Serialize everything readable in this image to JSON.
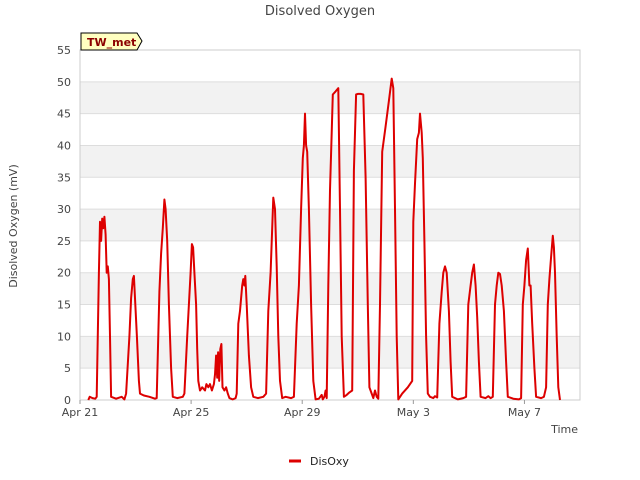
{
  "chart_data": {
    "type": "line",
    "title": "Disolved Oxygen",
    "xlabel": "Time",
    "ylabel": "Disolved Oxygen (mV)",
    "ylim": [
      0,
      55
    ],
    "xlim": [
      0,
      18
    ],
    "yticks": [
      0,
      5,
      10,
      15,
      20,
      25,
      30,
      35,
      40,
      45,
      50,
      55
    ],
    "xticks": [
      {
        "label": "Apr 21",
        "value": 0
      },
      {
        "label": "Apr 25",
        "value": 4
      },
      {
        "label": "Apr 29",
        "value": 8
      },
      {
        "label": "May 3",
        "value": 12
      },
      {
        "label": "May 7",
        "value": 16
      }
    ],
    "x_unit": "days since Apr 21",
    "grid": true,
    "legend_position": "bottom-center",
    "annotation": "TW_met",
    "colors": {
      "series": "#dd0000",
      "band": "#f2f2f2",
      "grid": "#dddddd"
    },
    "series": [
      {
        "name": "DisOxy",
        "points": [
          [
            0.3,
            0
          ],
          [
            0.35,
            0.5
          ],
          [
            0.45,
            0.3
          ],
          [
            0.55,
            0.2
          ],
          [
            0.6,
            0.5
          ],
          [
            0.68,
            20
          ],
          [
            0.72,
            28
          ],
          [
            0.76,
            25
          ],
          [
            0.8,
            28.5
          ],
          [
            0.84,
            27
          ],
          [
            0.88,
            28.8
          ],
          [
            0.92,
            26
          ],
          [
            0.96,
            20
          ],
          [
            1.0,
            21
          ],
          [
            1.04,
            19
          ],
          [
            1.08,
            10
          ],
          [
            1.12,
            0.5
          ],
          [
            1.3,
            0.2
          ],
          [
            1.5,
            0.5
          ],
          [
            1.6,
            0.1
          ],
          [
            1.66,
            1
          ],
          [
            1.78,
            10
          ],
          [
            1.84,
            16
          ],
          [
            1.9,
            19
          ],
          [
            1.94,
            19.5
          ],
          [
            1.98,
            16
          ],
          [
            2.05,
            10
          ],
          [
            2.12,
            3
          ],
          [
            2.16,
            1
          ],
          [
            2.3,
            0.7
          ],
          [
            2.5,
            0.5
          ],
          [
            2.7,
            0.2
          ],
          [
            2.76,
            0.3
          ],
          [
            2.86,
            17
          ],
          [
            2.92,
            23
          ],
          [
            2.98,
            27
          ],
          [
            3.04,
            31.5
          ],
          [
            3.08,
            30
          ],
          [
            3.14,
            25
          ],
          [
            3.2,
            15
          ],
          [
            3.28,
            5
          ],
          [
            3.34,
            0.5
          ],
          [
            3.5,
            0.3
          ],
          [
            3.7,
            0.5
          ],
          [
            3.76,
            1
          ],
          [
            3.86,
            10
          ],
          [
            3.92,
            15
          ],
          [
            3.98,
            20
          ],
          [
            4.03,
            24.5
          ],
          [
            4.07,
            24
          ],
          [
            4.12,
            20
          ],
          [
            4.18,
            15
          ],
          [
            4.22,
            8
          ],
          [
            4.26,
            3
          ],
          [
            4.32,
            1.5
          ],
          [
            4.4,
            2
          ],
          [
            4.5,
            1.5
          ],
          [
            4.55,
            2.5
          ],
          [
            4.62,
            2
          ],
          [
            4.68,
            2.5
          ],
          [
            4.75,
            1.5
          ],
          [
            4.82,
            2.5
          ],
          [
            4.86,
            4
          ],
          [
            4.9,
            7
          ],
          [
            4.94,
            3.5
          ],
          [
            4.97,
            7.5
          ],
          [
            5.01,
            3
          ],
          [
            5.05,
            8
          ],
          [
            5.09,
            8.8
          ],
          [
            5.13,
            2
          ],
          [
            5.2,
            1.5
          ],
          [
            5.26,
            2
          ],
          [
            5.32,
            1
          ],
          [
            5.38,
            0.3
          ],
          [
            5.5,
            0.1
          ],
          [
            5.6,
            0.3
          ],
          [
            5.64,
            1
          ],
          [
            5.7,
            12
          ],
          [
            5.76,
            14
          ],
          [
            5.84,
            18
          ],
          [
            5.88,
            19
          ],
          [
            5.92,
            18
          ],
          [
            5.95,
            19.5
          ],
          [
            6.0,
            15
          ],
          [
            6.08,
            7
          ],
          [
            6.16,
            2
          ],
          [
            6.24,
            0.5
          ],
          [
            6.4,
            0.3
          ],
          [
            6.6,
            0.5
          ],
          [
            6.7,
            1
          ],
          [
            6.78,
            14
          ],
          [
            6.86,
            20
          ],
          [
            6.92,
            27
          ],
          [
            6.96,
            31.8
          ],
          [
            7.02,
            30
          ],
          [
            7.08,
            21
          ],
          [
            7.14,
            10
          ],
          [
            7.2,
            3
          ],
          [
            7.28,
            0.3
          ],
          [
            7.4,
            0.5
          ],
          [
            7.6,
            0.3
          ],
          [
            7.7,
            0.5
          ],
          [
            7.8,
            12
          ],
          [
            7.88,
            18
          ],
          [
            7.96,
            30
          ],
          [
            8.02,
            38
          ],
          [
            8.06,
            40
          ],
          [
            8.1,
            45
          ],
          [
            8.14,
            40
          ],
          [
            8.18,
            39
          ],
          [
            8.24,
            30
          ],
          [
            8.32,
            15
          ],
          [
            8.4,
            3
          ],
          [
            8.48,
            0.1
          ],
          [
            8.6,
            0.2
          ],
          [
            8.7,
            0.8
          ],
          [
            8.74,
            0.1
          ],
          [
            8.8,
            0.5
          ],
          [
            8.84,
            1.5
          ],
          [
            8.88,
            0.3
          ],
          [
            8.94,
            18
          ],
          [
            9.0,
            33
          ],
          [
            9.06,
            42
          ],
          [
            9.1,
            48
          ],
          [
            9.2,
            48.5
          ],
          [
            9.3,
            49
          ],
          [
            9.36,
            30
          ],
          [
            9.42,
            10
          ],
          [
            9.5,
            0.5
          ],
          [
            9.6,
            0.8
          ],
          [
            9.7,
            1.2
          ],
          [
            9.8,
            1.5
          ],
          [
            9.86,
            36
          ],
          [
            9.94,
            48
          ],
          [
            10.0,
            48.1
          ],
          [
            10.1,
            48.1
          ],
          [
            10.2,
            48
          ],
          [
            10.28,
            35
          ],
          [
            10.36,
            15
          ],
          [
            10.42,
            2
          ],
          [
            10.5,
            1
          ],
          [
            10.56,
            0.3
          ],
          [
            10.62,
            1.5
          ],
          [
            10.68,
            0.5
          ],
          [
            10.74,
            0.2
          ],
          [
            10.8,
            15
          ],
          [
            10.88,
            39
          ],
          [
            11.0,
            43
          ],
          [
            11.12,
            47
          ],
          [
            11.22,
            50.5
          ],
          [
            11.28,
            49
          ],
          [
            11.34,
            30
          ],
          [
            11.4,
            10
          ],
          [
            11.46,
            0.1
          ],
          [
            11.6,
            1
          ],
          [
            11.8,
            2
          ],
          [
            11.96,
            3
          ],
          [
            12.0,
            28
          ],
          [
            12.06,
            34
          ],
          [
            12.14,
            41
          ],
          [
            12.2,
            42
          ],
          [
            12.24,
            45
          ],
          [
            12.3,
            42
          ],
          [
            12.34,
            38
          ],
          [
            12.4,
            25
          ],
          [
            12.46,
            10
          ],
          [
            12.52,
            1
          ],
          [
            12.6,
            0.5
          ],
          [
            12.72,
            0.3
          ],
          [
            12.78,
            0.6
          ],
          [
            12.86,
            0.4
          ],
          [
            12.94,
            12
          ],
          [
            13.02,
            17
          ],
          [
            13.08,
            20
          ],
          [
            13.14,
            21
          ],
          [
            13.2,
            20
          ],
          [
            13.28,
            14
          ],
          [
            13.34,
            6
          ],
          [
            13.4,
            0.5
          ],
          [
            13.6,
            0.1
          ],
          [
            13.8,
            0.3
          ],
          [
            13.9,
            0.5
          ],
          [
            13.98,
            15
          ],
          [
            14.06,
            18
          ],
          [
            14.12,
            20
          ],
          [
            14.18,
            21.3
          ],
          [
            14.24,
            18
          ],
          [
            14.3,
            13
          ],
          [
            14.36,
            6
          ],
          [
            14.42,
            0.5
          ],
          [
            14.6,
            0.3
          ],
          [
            14.7,
            0.6
          ],
          [
            14.78,
            0.3
          ],
          [
            14.86,
            0.5
          ],
          [
            14.94,
            15
          ],
          [
            15.0,
            18
          ],
          [
            15.06,
            20
          ],
          [
            15.12,
            19.8
          ],
          [
            15.18,
            18
          ],
          [
            15.26,
            14
          ],
          [
            15.34,
            6
          ],
          [
            15.4,
            0.5
          ],
          [
            15.6,
            0.2
          ],
          [
            15.8,
            0.1
          ],
          [
            15.88,
            0.3
          ],
          [
            15.94,
            15
          ],
          [
            16.0,
            18
          ],
          [
            16.06,
            22
          ],
          [
            16.12,
            23.8
          ],
          [
            16.18,
            18
          ],
          [
            16.22,
            18
          ],
          [
            16.28,
            12
          ],
          [
            16.36,
            5
          ],
          [
            16.42,
            0.5
          ],
          [
            16.6,
            0.3
          ],
          [
            16.7,
            0.5
          ],
          [
            16.78,
            2
          ],
          [
            16.84,
            15
          ],
          [
            16.9,
            19
          ],
          [
            16.96,
            22.5
          ],
          [
            17.02,
            25.8
          ],
          [
            17.06,
            24
          ],
          [
            17.1,
            20
          ],
          [
            17.16,
            10
          ],
          [
            17.22,
            2
          ],
          [
            17.28,
            0
          ]
        ]
      }
    ]
  }
}
